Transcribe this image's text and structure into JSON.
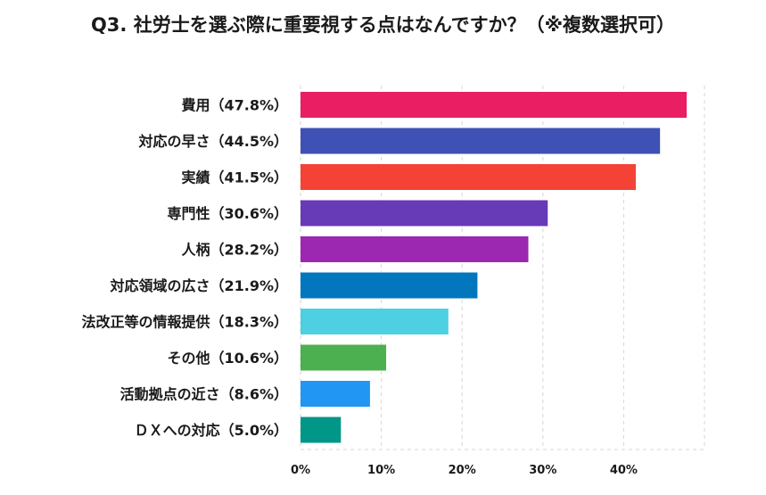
{
  "chart_data": {
    "type": "bar",
    "orientation": "horizontal",
    "title": "Q3. 社労士を選ぶ際に重要視する点はなんですか？（※複数選択可）",
    "categories": [
      "費用（47.8%）",
      "対応の早さ（44.5%）",
      "実績（41.5%）",
      "専門性（30.6%）",
      "人柄（28.2%）",
      "対応領域の広さ（21.9%）",
      "法改正等の情報提供（18.3%）",
      "その他（10.6%）",
      "活動拠点の近さ（8.6%）",
      "ＤＸへの対応（5.0%）"
    ],
    "values": [
      47.8,
      44.5,
      41.5,
      30.6,
      28.2,
      21.9,
      18.3,
      10.6,
      8.6,
      5.0
    ],
    "colors": [
      "#e91e63",
      "#3f51b5",
      "#f44336",
      "#673ab7",
      "#9c27b0",
      "#0277bd",
      "#4dd0e1",
      "#4caf50",
      "#2196f3",
      "#009688"
    ],
    "xlim": [
      0,
      50
    ],
    "xticks": [
      0,
      10,
      20,
      30,
      40
    ],
    "xtick_labels": [
      "0%",
      "10%",
      "20%",
      "30%",
      "40%"
    ],
    "grid": true,
    "xlabel": "",
    "ylabel": ""
  }
}
